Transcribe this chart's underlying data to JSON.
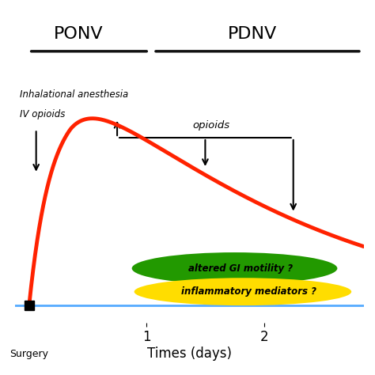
{
  "title_ponv": "PONV",
  "title_pdnv": "PDNV",
  "label_anesthesia_line1": "Inhalational anesthesia",
  "label_anesthesia_line2": "IV opioids",
  "label_opioids": "opioids",
  "label_gi": "altered GI motility ?",
  "label_inflam": "inflammatory mediators ?",
  "xlabel": "Times (days)",
  "surgery_label": "Surgery",
  "xticks": [
    1,
    2
  ],
  "background_color": "#ffffff",
  "curve_color": "#ff2200",
  "curve_linewidth": 3.5,
  "baseline_color": "#55aaff",
  "baseline_linewidth": 2.0,
  "gi_ellipse_color": "#229900",
  "gi_text_color": "#000000",
  "inflam_ellipse_color": "#ffdd00",
  "inflam_text_color": "#000000",
  "arrow_color": "#000000",
  "header_line_color": "#111111",
  "x_max": 2.85,
  "x_min": -0.12,
  "y_max": 1.05,
  "y_min": -0.08
}
